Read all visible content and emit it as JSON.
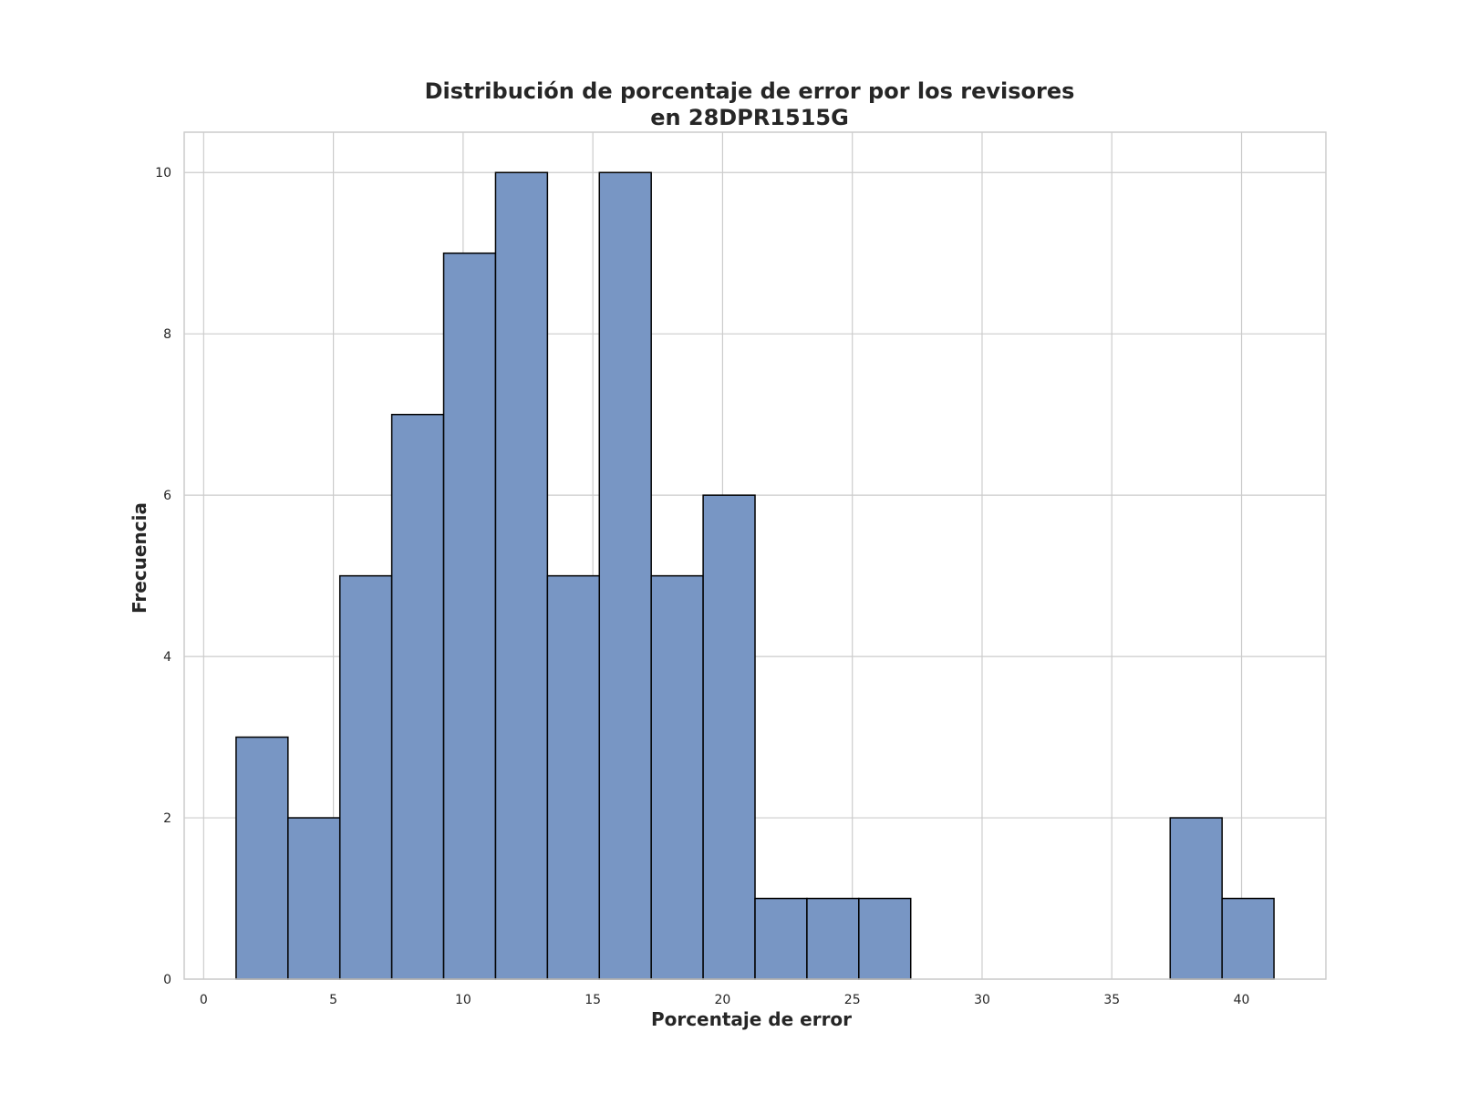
{
  "chart_data": {
    "type": "bar",
    "title_line1": "Distribución de porcentaje de error por los revisores",
    "title_line2": "en 28DPR1515G",
    "xlabel": "Porcentaje de error",
    "ylabel": "Frecuencia",
    "xlim": [
      -0.75,
      43.25
    ],
    "ylim": [
      0,
      10.5
    ],
    "xticks": [
      0,
      5,
      10,
      15,
      20,
      25,
      30,
      35,
      40
    ],
    "yticks": [
      0,
      2,
      4,
      6,
      8,
      10
    ],
    "grid": true,
    "bar_color": "#7896C4",
    "edge_color": "#000000",
    "bins": [
      {
        "start": 1.25,
        "end": 3.25,
        "count": 3
      },
      {
        "start": 3.25,
        "end": 5.25,
        "count": 2
      },
      {
        "start": 5.25,
        "end": 7.25,
        "count": 5
      },
      {
        "start": 7.25,
        "end": 9.25,
        "count": 7
      },
      {
        "start": 9.25,
        "end": 11.25,
        "count": 9
      },
      {
        "start": 11.25,
        "end": 13.25,
        "count": 10
      },
      {
        "start": 13.25,
        "end": 15.25,
        "count": 5
      },
      {
        "start": 15.25,
        "end": 17.25,
        "count": 10
      },
      {
        "start": 17.25,
        "end": 19.25,
        "count": 5
      },
      {
        "start": 19.25,
        "end": 21.25,
        "count": 6
      },
      {
        "start": 21.25,
        "end": 23.25,
        "count": 1
      },
      {
        "start": 23.25,
        "end": 25.25,
        "count": 1
      },
      {
        "start": 25.25,
        "end": 27.25,
        "count": 1
      },
      {
        "start": 27.25,
        "end": 29.25,
        "count": 0
      },
      {
        "start": 29.25,
        "end": 31.25,
        "count": 0
      },
      {
        "start": 31.25,
        "end": 33.25,
        "count": 0
      },
      {
        "start": 33.25,
        "end": 35.25,
        "count": 0
      },
      {
        "start": 35.25,
        "end": 37.25,
        "count": 0
      },
      {
        "start": 37.25,
        "end": 39.25,
        "count": 2
      },
      {
        "start": 39.25,
        "end": 41.25,
        "count": 1
      }
    ]
  }
}
